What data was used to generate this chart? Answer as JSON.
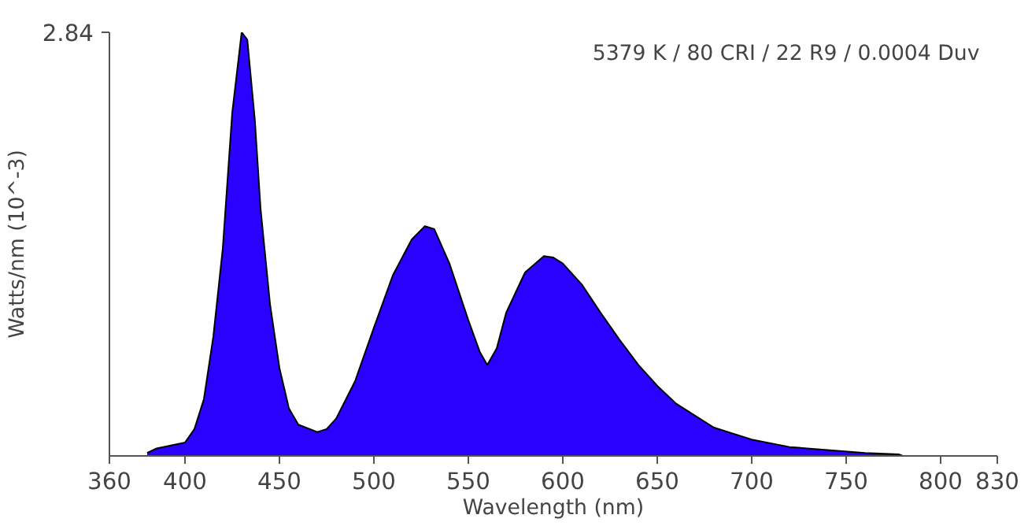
{
  "chart_data": {
    "type": "area",
    "xlabel": "Wavelength (nm)",
    "ylabel": "Watts/nm (10^-3)",
    "annotations": [
      "5379 K / 80 CRI / 22 R9 / 0.0004 Duv"
    ],
    "x": [
      380,
      385,
      400,
      405,
      410,
      415,
      420,
      425,
      430,
      433,
      437,
      440,
      445,
      450,
      455,
      460,
      470,
      475,
      480,
      490,
      500,
      510,
      520,
      527,
      532,
      540,
      550,
      556,
      560,
      565,
      570,
      580,
      590,
      595,
      600,
      610,
      620,
      630,
      640,
      650,
      660,
      670,
      680,
      700,
      720,
      740,
      760,
      778,
      780
    ],
    "series": [
      {
        "color": "#2a00ff",
        "values": [
          0.02,
          0.05,
          0.09,
          0.18,
          0.38,
          0.8,
          1.39,
          2.3,
          2.84,
          2.79,
          2.25,
          1.66,
          1.02,
          0.59,
          0.32,
          0.21,
          0.16,
          0.18,
          0.25,
          0.5,
          0.86,
          1.21,
          1.45,
          1.54,
          1.52,
          1.29,
          0.91,
          0.7,
          0.61,
          0.72,
          0.96,
          1.23,
          1.34,
          1.33,
          1.29,
          1.15,
          0.96,
          0.78,
          0.61,
          0.47,
          0.35,
          0.27,
          0.19,
          0.11,
          0.06,
          0.04,
          0.02,
          0.01,
          0
        ]
      }
    ],
    "xlim": [
      360,
      830
    ],
    "xticks": [
      360,
      400,
      450,
      500,
      550,
      600,
      650,
      700,
      750,
      800,
      830
    ],
    "ylim": [
      0,
      2.84
    ],
    "yticks": [
      2.84
    ],
    "grid": false
  }
}
